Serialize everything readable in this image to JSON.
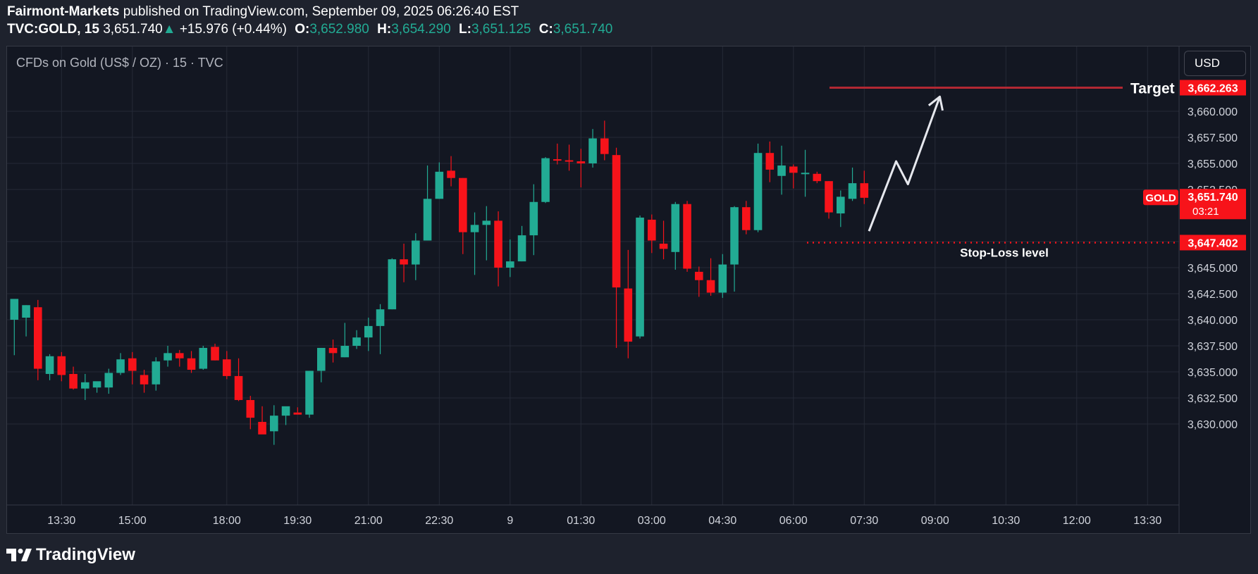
{
  "header": {
    "publisher": "Fairmont-Markets",
    "published_text": " published on TradingView.com, September 09, 2025 06:26:40 EST",
    "symbol": "TVC:GOLD, 15",
    "last": "3,651.740",
    "change": "+15.976 (+0.44%)",
    "o_label": "O:",
    "o_value": "3,652.980",
    "h_label": "H:",
    "h_value": "3,654.290",
    "l_label": "L:",
    "l_value": "3,651.125",
    "c_label": "C:",
    "c_value": "3,651.740"
  },
  "chart_legend": "CFDs on Gold (US$ / OZ) · 15 · TVC",
  "currency_button": "USD",
  "brand": "TradingView",
  "colors": {
    "up": "#22ab94",
    "down": "#f7131a",
    "target_line": "#b22833",
    "panel_bg": "#131722",
    "grid": "#252a37",
    "annotation": "#e6e8ee"
  },
  "chart_data": {
    "type": "candlestick",
    "interval": "15",
    "ylim": [
      3627.5,
      3665
    ],
    "y_ticks": [
      3630,
      3632.5,
      3635,
      3637.5,
      3640,
      3642.5,
      3645,
      3647.5,
      3652.5,
      3655,
      3657.5,
      3660
    ],
    "y_tick_labels": [
      "3,630.000",
      "3,632.500",
      "3,635.000",
      "3,637.500",
      "3,640.000",
      "3,642.500",
      "3,645.000",
      "3,647.500",
      "3,652.500",
      "3,655.000",
      "3,657.500",
      "3,660.000"
    ],
    "x_ticks": [
      {
        "i": 4,
        "label": "13:30"
      },
      {
        "i": 10,
        "label": "15:00"
      },
      {
        "i": 18,
        "label": "18:00"
      },
      {
        "i": 24,
        "label": "19:30"
      },
      {
        "i": 30,
        "label": "21:00"
      },
      {
        "i": 36,
        "label": "22:30"
      },
      {
        "i": 42,
        "label": "9"
      },
      {
        "i": 48,
        "label": "01:30"
      },
      {
        "i": 54,
        "label": "03:00"
      },
      {
        "i": 60,
        "label": "04:30"
      },
      {
        "i": 66,
        "label": "06:00"
      },
      {
        "i": 72,
        "label": "07:30"
      },
      {
        "i": 78,
        "label": "09:00"
      },
      {
        "i": 84,
        "label": "10:30"
      },
      {
        "i": 90,
        "label": "12:00"
      },
      {
        "i": 96,
        "label": "13:30"
      }
    ],
    "ohlc": [
      [
        3640.0,
        3641.8,
        3636.6,
        3642.0
      ],
      [
        3640.2,
        3641.4,
        3638.4,
        3641.4
      ],
      [
        3641.2,
        3641.9,
        3634.2,
        3635.3
      ],
      [
        3634.8,
        3636.7,
        3634.2,
        3636.5
      ],
      [
        3636.5,
        3636.9,
        3634.1,
        3634.7
      ],
      [
        3634.8,
        3635.5,
        3633.3,
        3633.4
      ],
      [
        3633.4,
        3634.8,
        3632.3,
        3634.0
      ],
      [
        3633.5,
        3634.0,
        3633.0,
        3634.1
      ],
      [
        3633.5,
        3635.3,
        3632.9,
        3634.9
      ],
      [
        3634.9,
        3636.8,
        3634.7,
        3636.2
      ],
      [
        3636.3,
        3636.9,
        3633.8,
        3635.1
      ],
      [
        3634.7,
        3635.2,
        3633.0,
        3633.8
      ],
      [
        3633.8,
        3636.4,
        3633.2,
        3636.0
      ],
      [
        3636.1,
        3637.5,
        3635.5,
        3636.8
      ],
      [
        3636.8,
        3637.1,
        3635.5,
        3636.3
      ],
      [
        3636.3,
        3637.0,
        3634.9,
        3635.2
      ],
      [
        3635.3,
        3637.5,
        3635.2,
        3637.3
      ],
      [
        3637.4,
        3637.7,
        3636.1,
        3636.1
      ],
      [
        3636.2,
        3637.0,
        3634.3,
        3634.6
      ],
      [
        3634.6,
        3636.3,
        3632.2,
        3632.3
      ],
      [
        3632.3,
        3632.7,
        3629.5,
        3630.6
      ],
      [
        3630.2,
        3631.7,
        3629.1,
        3629.0
      ],
      [
        3629.3,
        3631.8,
        3628.0,
        3630.8
      ],
      [
        3630.8,
        3631.6,
        3629.9,
        3631.7
      ],
      [
        3631.1,
        3631.6,
        3631.1,
        3630.9
      ],
      [
        3630.9,
        3635.1,
        3630.6,
        3635.1
      ],
      [
        3635.1,
        3637.3,
        3634.0,
        3637.3
      ],
      [
        3637.3,
        3638.1,
        3635.9,
        3636.8
      ],
      [
        3636.4,
        3639.7,
        3636.4,
        3637.5
      ],
      [
        3637.5,
        3639.0,
        3637.2,
        3638.3
      ],
      [
        3638.3,
        3640.2,
        3637.0,
        3639.4
      ],
      [
        3639.4,
        3641.5,
        3636.7,
        3641.0
      ],
      [
        3641.0,
        3645.9,
        3641.0,
        3645.8
      ],
      [
        3645.8,
        3647.3,
        3643.6,
        3645.3
      ],
      [
        3645.3,
        3648.3,
        3643.8,
        3647.6
      ],
      [
        3647.6,
        3654.8,
        3647.6,
        3651.6
      ],
      [
        3651.6,
        3655.1,
        3651.6,
        3654.2
      ],
      [
        3654.3,
        3655.7,
        3652.8,
        3653.6
      ],
      [
        3653.6,
        3653.6,
        3646.3,
        3648.4
      ],
      [
        3648.4,
        3650.3,
        3644.3,
        3649.1
      ],
      [
        3649.1,
        3650.9,
        3645.7,
        3649.5
      ],
      [
        3649.5,
        3650.4,
        3643.2,
        3645.0
      ],
      [
        3645.0,
        3647.7,
        3644.1,
        3645.6
      ],
      [
        3645.6,
        3649.0,
        3645.6,
        3648.1
      ],
      [
        3648.1,
        3653.0,
        3646.2,
        3651.3
      ],
      [
        3651.3,
        3655.6,
        3651.2,
        3655.5
      ],
      [
        3655.4,
        3656.9,
        3654.9,
        3655.3
      ],
      [
        3655.3,
        3656.8,
        3654.3,
        3655.2
      ],
      [
        3655.2,
        3656.4,
        3652.7,
        3655.0
      ],
      [
        3655.0,
        3658.3,
        3654.6,
        3657.4
      ],
      [
        3657.4,
        3659.1,
        3655.3,
        3655.9
      ],
      [
        3655.8,
        3656.5,
        3637.3,
        3643.1
      ],
      [
        3643.0,
        3646.7,
        3636.3,
        3637.9
      ],
      [
        3638.4,
        3650.0,
        3638.2,
        3649.8
      ],
      [
        3649.6,
        3650.1,
        3646.4,
        3647.6
      ],
      [
        3647.3,
        3649.5,
        3645.8,
        3646.8
      ],
      [
        3646.5,
        3651.3,
        3644.8,
        3651.1
      ],
      [
        3651.1,
        3651.4,
        3644.6,
        3644.9
      ],
      [
        3644.6,
        3645.1,
        3642.2,
        3643.8
      ],
      [
        3643.8,
        3645.9,
        3642.3,
        3642.6
      ],
      [
        3642.6,
        3646.3,
        3642.1,
        3645.3
      ],
      [
        3645.3,
        3650.9,
        3642.7,
        3650.8
      ],
      [
        3650.8,
        3651.4,
        3648.2,
        3648.6
      ],
      [
        3648.6,
        3656.9,
        3648.4,
        3656.0
      ],
      [
        3656.0,
        3657.1,
        3653.2,
        3654.4
      ],
      [
        3653.8,
        3656.7,
        3652.0,
        3654.8
      ],
      [
        3654.7,
        3654.9,
        3652.6,
        3654.1
      ],
      [
        3654.1,
        3656.3,
        3651.8,
        3654.1
      ],
      [
        3654.0,
        3654.2,
        3653.1,
        3653.3
      ],
      [
        3653.3,
        3653.3,
        3649.7,
        3650.3
      ],
      [
        3650.2,
        3652.4,
        3648.9,
        3651.8
      ],
      [
        3651.6,
        3654.6,
        3651.4,
        3653.1
      ],
      [
        3653.1,
        3654.3,
        3651.1,
        3651.7
      ]
    ],
    "last_price": {
      "label": "GOLD",
      "value": 3651.74,
      "value_text": "3,651.740",
      "countdown": "03:21"
    },
    "target": {
      "label": "Target",
      "value": 3662.263,
      "value_text": "3,662.263"
    },
    "stop_loss": {
      "label": "Stop-Loss level",
      "value": 3647.402,
      "value_text": "3,647.402"
    },
    "projection_path": [
      [
        72.4,
        3648.5
      ],
      [
        74.7,
        3655.2
      ],
      [
        75.7,
        3653.0
      ],
      [
        78.4,
        3661.4
      ]
    ]
  }
}
